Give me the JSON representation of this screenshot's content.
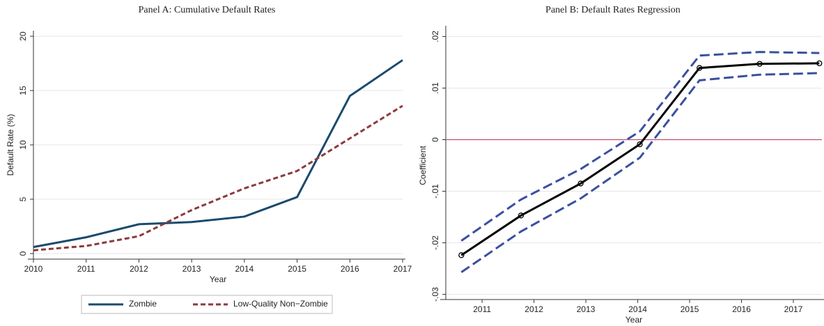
{
  "chart_data": [
    {
      "type": "line",
      "title": "Panel A: Cumulative Default Rates",
      "x_label": "Year",
      "y_label": "Default Rate (%)",
      "x": [
        2010,
        2011,
        2012,
        2013,
        2014,
        2015,
        2016,
        2017
      ],
      "series": [
        {
          "name": "Zombie",
          "color": "#1a4a6e",
          "dash": "solid",
          "values": [
            0.6,
            1.5,
            2.7,
            2.9,
            3.4,
            5.2,
            14.5,
            17.8
          ]
        },
        {
          "name": "Low-Quality Non−Zombie",
          "color": "#8b3a3e",
          "dash": "dashed",
          "values": [
            0.3,
            0.7,
            1.6,
            4.0,
            6.0,
            7.6,
            10.6,
            13.6
          ]
        }
      ],
      "xlim": [
        2010,
        2017
      ],
      "xticks": [
        2010,
        2011,
        2012,
        2013,
        2014,
        2015,
        2016,
        2017
      ],
      "ylim": [
        0,
        20
      ],
      "yticks": [
        0,
        5,
        10,
        15,
        20
      ],
      "grid": true,
      "legend": "bottom"
    },
    {
      "type": "line",
      "title": "Panel B: Default Rates Regression",
      "x_label": "Year",
      "y_label": "Coefficient",
      "x": [
        2010.6,
        2011.75,
        2012.9,
        2014.04,
        2015.19,
        2016.35,
        2017.5
      ],
      "series": [
        {
          "color": "#000000",
          "dash": "solid",
          "marker": true,
          "values": [
            -0.0224,
            -0.0147,
            -0.0085,
            -0.0009,
            0.0139,
            0.0147,
            0.0148
          ]
        },
        {
          "color": "#3a4fa0",
          "dash": "longdash",
          "values": [
            -0.0196,
            -0.0116,
            -0.0057,
            0.0016,
            0.0163,
            0.017,
            0.0168
          ]
        },
        {
          "color": "#3a4fa0",
          "dash": "longdash",
          "values": [
            -0.0257,
            -0.0178,
            -0.0114,
            -0.0035,
            0.0115,
            0.0126,
            0.0129
          ]
        }
      ],
      "xlim": [
        2010.3,
        2017.55
      ],
      "xticks": [
        2011,
        2012,
        2013,
        2014,
        2015,
        2016,
        2017
      ],
      "ylim": [
        -0.031,
        0.021
      ],
      "yticks": [
        {
          "value": -0.03,
          "label": "-.03"
        },
        {
          "value": -0.02,
          "label": "-.02"
        },
        {
          "value": -0.01,
          "label": "-.01"
        },
        0,
        {
          "value": 0.01,
          "label": ".01"
        },
        {
          "value": 0.02,
          "label": ".02"
        }
      ],
      "hline": 0,
      "hline_color": "#c0506a",
      "grid": true
    }
  ]
}
